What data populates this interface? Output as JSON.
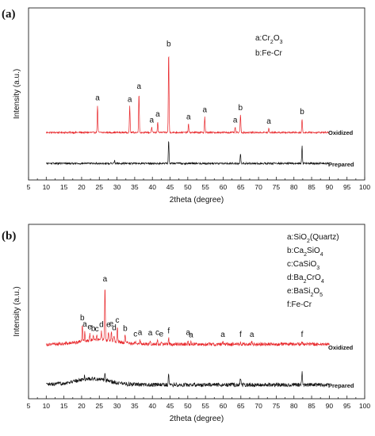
{
  "chart_data": [
    {
      "type": "line",
      "panel_label": "(a)",
      "xlabel": "2theta (degree)",
      "ylabel": "Intensity (a.u.)",
      "xlim": [
        5,
        100
      ],
      "xticks": [
        5,
        10,
        15,
        20,
        25,
        30,
        35,
        40,
        45,
        50,
        55,
        60,
        65,
        70,
        75,
        80,
        85,
        90,
        95,
        100
      ],
      "legend": [
        {
          "letter": "a",
          "parts": [
            [
              "",
              "a:Cr"
            ],
            [
              "sub",
              "2"
            ],
            [
              "",
              "O"
            ],
            [
              "sub",
              "3"
            ]
          ]
        },
        {
          "letter": "b",
          "parts": [
            [
              "",
              "b:Fe-Cr"
            ]
          ]
        }
      ],
      "series": [
        {
          "name": "Oxidized",
          "color": "#e8262a",
          "x_range": [
            10,
            90
          ],
          "baseline": 0.35,
          "noise": 0.12,
          "peaks": [
            {
              "x": 24.5,
              "h": 4.2,
              "label": "a"
            },
            {
              "x": 33.6,
              "h": 4.0,
              "label": "a"
            },
            {
              "x": 36.2,
              "h": 6.0,
              "label": "a"
            },
            {
              "x": 39.8,
              "h": 0.8,
              "label": "a"
            },
            {
              "x": 41.5,
              "h": 1.7,
              "label": "a"
            },
            {
              "x": 44.6,
              "h": 12.5,
              "label": "b"
            },
            {
              "x": 50.2,
              "h": 1.3,
              "label": "a"
            },
            {
              "x": 54.8,
              "h": 2.4,
              "label": "a"
            },
            {
              "x": 63.4,
              "h": 0.8,
              "label": "a"
            },
            {
              "x": 64.9,
              "h": 2.7,
              "label": "b"
            },
            {
              "x": 72.9,
              "h": 0.6,
              "label": "a"
            },
            {
              "x": 82.3,
              "h": 2.1,
              "label": "b"
            }
          ]
        },
        {
          "name": "Prepared",
          "color": "#111111",
          "x_range": [
            10,
            90
          ],
          "baseline": 0.35,
          "noise": 0.14,
          "peaks": [
            {
              "x": 29.3,
              "h": 0.5
            },
            {
              "x": 44.6,
              "h": 3.6
            },
            {
              "x": 64.9,
              "h": 1.5
            },
            {
              "x": 82.3,
              "h": 2.7
            }
          ]
        }
      ]
    },
    {
      "type": "line",
      "panel_label": "(b)",
      "xlabel": "2theta (degree)",
      "ylabel": "Intensity (a.u.)",
      "xlim": [
        5,
        100
      ],
      "xticks": [
        5,
        10,
        15,
        20,
        25,
        30,
        35,
        40,
        45,
        50,
        55,
        60,
        65,
        70,
        75,
        80,
        85,
        90,
        95,
        100
      ],
      "legend": [
        {
          "letter": "a",
          "parts": [
            [
              "",
              "a:SiO"
            ],
            [
              "sub",
              "2"
            ],
            [
              "",
              "(Quartz)"
            ]
          ]
        },
        {
          "letter": "b",
          "parts": [
            [
              "",
              "b:Ca"
            ],
            [
              "sub",
              "2"
            ],
            [
              "",
              "SiO"
            ],
            [
              "sub",
              "4"
            ]
          ]
        },
        {
          "letter": "c",
          "parts": [
            [
              "",
              "c:CaSiO"
            ],
            [
              "sub",
              "3"
            ]
          ]
        },
        {
          "letter": "d",
          "parts": [
            [
              "",
              "d:Ba"
            ],
            [
              "sub",
              "2"
            ],
            [
              "",
              "CrO"
            ],
            [
              "sub",
              "4"
            ]
          ]
        },
        {
          "letter": "e",
          "parts": [
            [
              "",
              "e:BaSi"
            ],
            [
              "sub",
              "2"
            ],
            [
              "",
              "O"
            ],
            [
              "sub",
              "5"
            ]
          ]
        },
        {
          "letter": "f",
          "parts": [
            [
              "",
              "f:Fe-Cr"
            ]
          ]
        }
      ],
      "series": [
        {
          "name": "Oxidized",
          "color": "#e8262a",
          "x_range": [
            10,
            90
          ],
          "baseline": 0.9,
          "hump": {
            "center": 25,
            "width": 7,
            "height": 0.9
          },
          "noise": 0.32,
          "peaks": [
            {
              "x": 20.2,
              "h": 3.2,
              "label": "b"
            },
            {
              "x": 20.9,
              "h": 1.9,
              "label": "a"
            },
            {
              "x": 22.3,
              "h": 1.2,
              "label": "e"
            },
            {
              "x": 23.3,
              "h": 0.8,
              "label": "b"
            },
            {
              "x": 24.3,
              "h": 0.7,
              "label": "c"
            },
            {
              "x": 25.6,
              "h": 1.6,
              "label": "d"
            },
            {
              "x": 26.6,
              "h": 10.6,
              "label": "a"
            },
            {
              "x": 27.6,
              "h": 1.7,
              "label": "e"
            },
            {
              "x": 28.4,
              "h": 1.9,
              "label": "e"
            },
            {
              "x": 29.2,
              "h": 1.2,
              "label": "d"
            },
            {
              "x": 30.1,
              "h": 2.8,
              "label": "c"
            },
            {
              "x": 32.3,
              "h": 1.4,
              "label": "b"
            },
            {
              "x": 35.2,
              "h": 0.5,
              "label": "c"
            },
            {
              "x": 36.5,
              "h": 0.8,
              "label": "a"
            },
            {
              "x": 39.4,
              "h": 0.8,
              "label": "a"
            },
            {
              "x": 41.4,
              "h": 0.9,
              "label": "c"
            },
            {
              "x": 42.5,
              "h": 0.6,
              "label": "e"
            },
            {
              "x": 44.6,
              "h": 1.2,
              "label": "f"
            },
            {
              "x": 50.1,
              "h": 0.9,
              "label": "a"
            },
            {
              "x": 50.9,
              "h": 0.4,
              "label": "a"
            },
            {
              "x": 59.9,
              "h": 0.5,
              "label": "a"
            },
            {
              "x": 64.9,
              "h": 0.5,
              "label": "f"
            },
            {
              "x": 68.1,
              "h": 0.5,
              "label": "a"
            },
            {
              "x": 82.3,
              "h": 0.5,
              "label": "f"
            }
          ]
        },
        {
          "name": "Prepared",
          "color": "#111111",
          "x_range": [
            10,
            90
          ],
          "baseline": 0.4,
          "hump": {
            "center": 23,
            "width": 7,
            "height": 1.2
          },
          "noise": 0.38,
          "peaks": [
            {
              "x": 20.8,
              "h": 0.6
            },
            {
              "x": 26.6,
              "h": 1.6
            },
            {
              "x": 44.6,
              "h": 2.3
            },
            {
              "x": 64.9,
              "h": 1.4
            },
            {
              "x": 82.3,
              "h": 2.6
            }
          ]
        }
      ]
    }
  ]
}
